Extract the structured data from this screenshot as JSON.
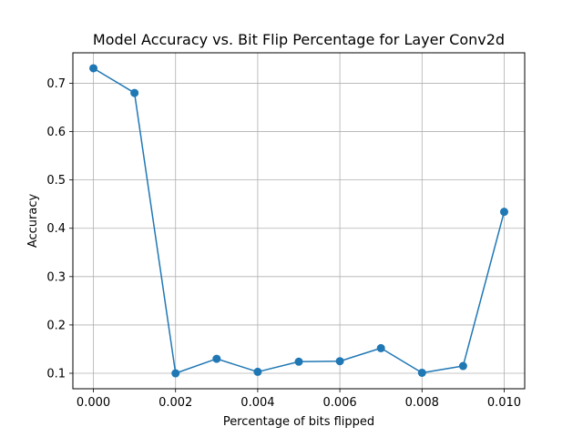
{
  "chart_data": {
    "type": "line",
    "title": "Model Accuracy vs. Bit Flip Percentage for Layer Conv2d",
    "xlabel": "Percentage of bits flipped",
    "ylabel": "Accuracy",
    "xlim": [
      -0.0005,
      0.0105
    ],
    "ylim": [
      0.068,
      0.763
    ],
    "xticks": [
      0.0,
      0.002,
      0.004,
      0.006,
      0.008,
      0.01
    ],
    "xtick_labels": [
      "0.000",
      "0.002",
      "0.004",
      "0.006",
      "0.008",
      "0.010"
    ],
    "yticks": [
      0.1,
      0.2,
      0.3,
      0.4,
      0.5,
      0.6,
      0.7
    ],
    "ytick_labels": [
      "0.1",
      "0.2",
      "0.3",
      "0.4",
      "0.5",
      "0.6",
      "0.7"
    ],
    "grid": true,
    "series": [
      {
        "color": "#1f77b4",
        "marker": "circle",
        "x": [
          0.0,
          0.001,
          0.002,
          0.003,
          0.004,
          0.005,
          0.006,
          0.007,
          0.008,
          0.009,
          0.01
        ],
        "y": [
          0.731,
          0.68,
          0.1,
          0.13,
          0.103,
          0.124,
          0.125,
          0.152,
          0.101,
          0.115,
          0.434
        ]
      }
    ]
  }
}
